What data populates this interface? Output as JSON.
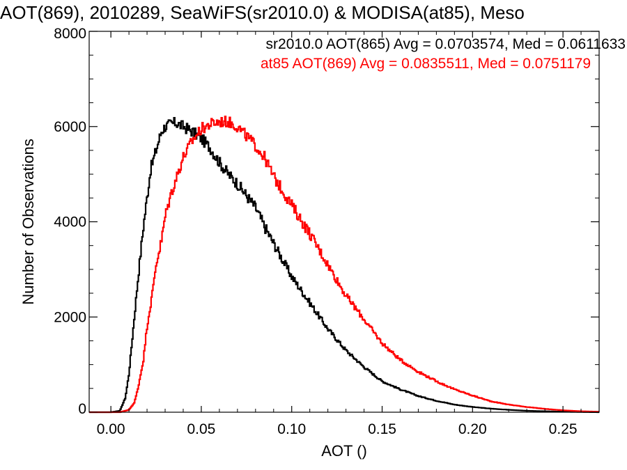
{
  "chart_data": {
    "type": "line",
    "step": true,
    "title": "AOT(869), 2010289, SeaWiFS(sr2010.0) & MODISA(at85), Meso",
    "xlabel": "AOT ()",
    "ylabel": "Number of Observations",
    "xlim": [
      -0.012,
      0.27
    ],
    "ylim": [
      0,
      8000
    ],
    "xticks": [
      0.0,
      0.05,
      0.1,
      0.15,
      0.2,
      0.25
    ],
    "xtick_labels": [
      "0.00",
      "0.05",
      "0.10",
      "0.15",
      "0.20",
      "0.25"
    ],
    "yticks": [
      0,
      2000,
      4000,
      6000,
      8000
    ],
    "ytick_labels": [
      "0",
      "2000",
      "4000",
      "6000",
      "8000"
    ],
    "legend_placement": "top-right",
    "series": [
      {
        "name": "sr2010.0 AOT(865)",
        "label": "sr2010.0 AOT(865) Avg = 0.0703574, Med = 0.0611633",
        "color": "#000000",
        "x": [
          -0.012,
          0.0,
          0.005,
          0.008,
          0.01,
          0.012,
          0.015,
          0.018,
          0.02,
          0.022,
          0.025,
          0.028,
          0.03,
          0.033,
          0.036,
          0.04,
          0.045,
          0.05,
          0.055,
          0.06,
          0.065,
          0.07,
          0.075,
          0.08,
          0.085,
          0.09,
          0.095,
          0.1,
          0.11,
          0.12,
          0.13,
          0.14,
          0.15,
          0.16,
          0.17,
          0.18,
          0.19,
          0.2,
          0.21,
          0.22,
          0.23,
          0.24,
          0.25,
          0.26,
          0.27
        ],
        "y": [
          0,
          0,
          30,
          300,
          800,
          1600,
          2800,
          3900,
          4500,
          5100,
          5500,
          5900,
          6000,
          6050,
          6080,
          6000,
          5900,
          5750,
          5550,
          5250,
          5000,
          4800,
          4550,
          4300,
          3900,
          3550,
          3200,
          2850,
          2300,
          1750,
          1300,
          950,
          650,
          480,
          340,
          240,
          160,
          110,
          75,
          50,
          30,
          20,
          10,
          5,
          0
        ]
      },
      {
        "name": "at85 AOT(869)",
        "label": "at85 AOT(869) Avg = 0.0835511, Med = 0.0751179",
        "color": "#ff0000",
        "x": [
          -0.012,
          0.005,
          0.01,
          0.013,
          0.015,
          0.018,
          0.02,
          0.023,
          0.025,
          0.028,
          0.03,
          0.033,
          0.036,
          0.04,
          0.045,
          0.05,
          0.055,
          0.06,
          0.065,
          0.07,
          0.075,
          0.08,
          0.085,
          0.09,
          0.095,
          0.1,
          0.11,
          0.12,
          0.13,
          0.14,
          0.15,
          0.16,
          0.17,
          0.18,
          0.19,
          0.2,
          0.21,
          0.22,
          0.23,
          0.24,
          0.25,
          0.26,
          0.27
        ],
        "y": [
          0,
          0,
          50,
          200,
          500,
          1100,
          1800,
          2500,
          3100,
          3600,
          4100,
          4550,
          4900,
          5350,
          5700,
          5950,
          6050,
          6100,
          6100,
          6000,
          5800,
          5600,
          5350,
          4950,
          4650,
          4350,
          3750,
          3100,
          2450,
          1950,
          1450,
          1100,
          850,
          650,
          480,
          350,
          230,
          160,
          110,
          70,
          40,
          20,
          10
        ]
      }
    ]
  }
}
